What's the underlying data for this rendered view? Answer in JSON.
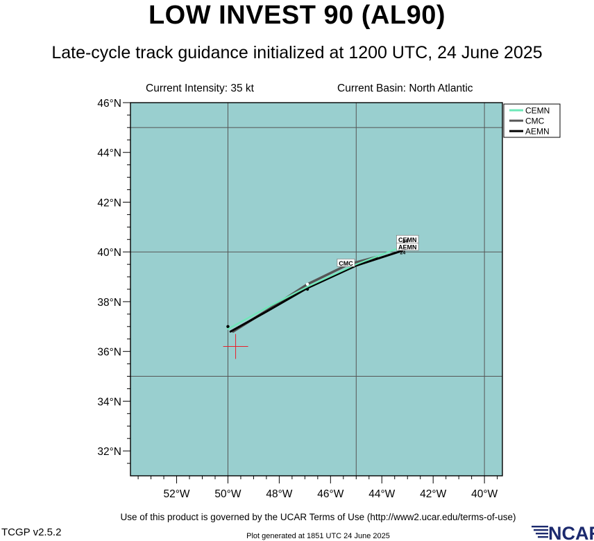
{
  "header": {
    "title": "LOW INVEST 90 (AL90)",
    "subtitle": "Late-cycle track guidance initialized at 1200 UTC, 24 June 2025",
    "current_intensity": "Current Intensity: 35 kt",
    "current_basin": "Current Basin: North Atlantic"
  },
  "footer": {
    "terms": "Use of this product is governed by the UCAR Terms of Use (http://www2.ucar.edu/terms-of-use)",
    "version": "TCGP v2.5.2",
    "generated": "Plot generated at 1851 UTC   24 June 2025",
    "logo_text": "NCAR"
  },
  "colors": {
    "ocean": "#99cfcf",
    "grid": "#555555",
    "storm_marker": "#e8202a"
  },
  "chart_data": {
    "type": "map",
    "lat_range": [
      31,
      46
    ],
    "lon_range": [
      -53.8,
      -39.3
    ],
    "lat_ticks": [
      {
        "value": 32,
        "label": "32°N"
      },
      {
        "value": 34,
        "label": "34°N"
      },
      {
        "value": 36,
        "label": "36°N"
      },
      {
        "value": 38,
        "label": "38°N"
      },
      {
        "value": 40,
        "label": "40°N"
      },
      {
        "value": 42,
        "label": "42°N"
      },
      {
        "value": 44,
        "label": "44°N"
      },
      {
        "value": 46,
        "label": "46°N"
      }
    ],
    "lon_ticks": [
      {
        "value": -52,
        "label": "52°W"
      },
      {
        "value": -50,
        "label": "50°W"
      },
      {
        "value": -48,
        "label": "48°W"
      },
      {
        "value": -46,
        "label": "46°W"
      },
      {
        "value": -44,
        "label": "44°W"
      },
      {
        "value": -42,
        "label": "42°W"
      },
      {
        "value": -40,
        "label": "40°W"
      }
    ],
    "grid_lons": [
      -50,
      -45,
      -40
    ],
    "grid_lats": [
      35,
      40,
      45
    ],
    "current_position": {
      "lat": 36.2,
      "lon": -49.7
    },
    "legend": {
      "placement": "top-right",
      "entries": [
        {
          "name": "CEMN",
          "color": "#6ee8b8"
        },
        {
          "name": "CMC",
          "color": "#555555"
        },
        {
          "name": "AEMN",
          "color": "#000000"
        }
      ]
    },
    "series": [
      {
        "name": "CMC",
        "color": "#555555",
        "points": [
          {
            "lon": -49.8,
            "lat": 36.8
          },
          {
            "lon": -48.4,
            "lat": 37.7
          },
          {
            "lon": -46.9,
            "lat": 38.7
          },
          {
            "lon": -45.3,
            "lat": 39.5
          },
          {
            "lon": -44.2,
            "lat": 39.8
          }
        ],
        "end_label": "CMC",
        "end_label_at": {
          "lon": -45.4,
          "lat": 39.55
        },
        "hour_markers": [
          {
            "lon": -46.9,
            "lat": 38.7
          }
        ]
      },
      {
        "name": "AEMN",
        "color": "#000000",
        "points": [
          {
            "lon": -49.9,
            "lat": 36.8
          },
          {
            "lon": -48.5,
            "lat": 37.6
          },
          {
            "lon": -46.9,
            "lat": 38.55
          },
          {
            "lon": -45.0,
            "lat": 39.45
          },
          {
            "lon": -43.2,
            "lat": 40.05
          }
        ],
        "end_label": "AEMN",
        "end_label_at": {
          "lon": -43.0,
          "lat": 40.2
        },
        "hour_markers": [
          {
            "lon": -50.0,
            "lat": 37.0
          },
          {
            "lon": -46.9,
            "lat": 38.5
          }
        ],
        "end_hour": "24"
      },
      {
        "name": "CEMN",
        "color": "#6ee8b8",
        "points": [
          {
            "lon": -50.0,
            "lat": 36.9
          },
          {
            "lon": -48.5,
            "lat": 37.75
          },
          {
            "lon": -46.9,
            "lat": 38.6
          },
          {
            "lon": -45.0,
            "lat": 39.5
          },
          {
            "lon": -43.1,
            "lat": 40.25
          }
        ],
        "end_label": "CEMN",
        "end_label_at": {
          "lon": -43.0,
          "lat": 40.5
        },
        "end_hour": "24"
      }
    ]
  }
}
